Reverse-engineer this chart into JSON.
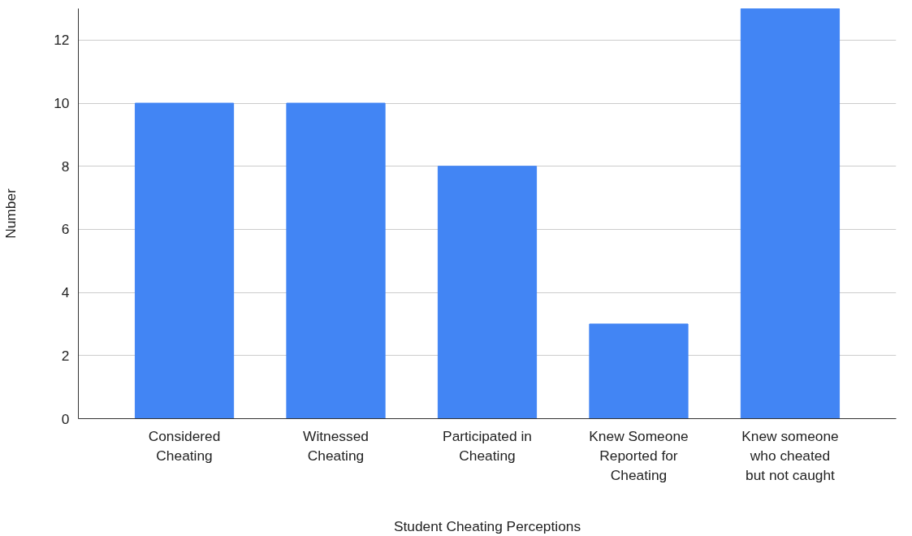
{
  "chart_data": {
    "type": "bar",
    "xlabel": "Student Cheating Perceptions",
    "ylabel": "Number",
    "categories": [
      "Considered\nCheating",
      "Witnessed\nCheating",
      "Participated in\nCheating",
      "Knew Someone\nReported for\nCheating",
      "Knew someone\nwho cheated\nbut not caught"
    ],
    "values": [
      10,
      10,
      8,
      3,
      13
    ],
    "color": "#4285f4",
    "ylim": [
      0,
      13
    ],
    "yticks": [
      0,
      2,
      4,
      6,
      8,
      10,
      12
    ],
    "grid": "y"
  }
}
